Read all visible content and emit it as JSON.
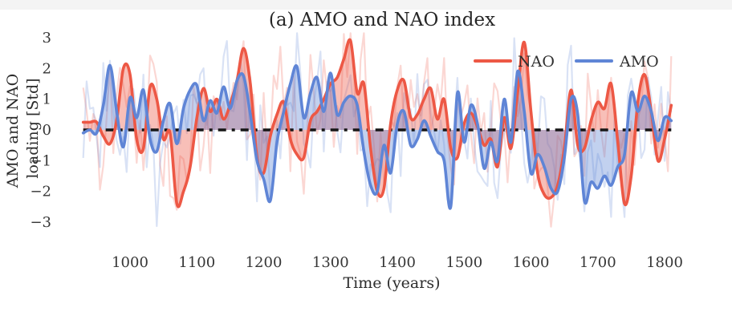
{
  "figure": {
    "title": "(a) AMO and NAO index",
    "xlabel": "Time (years)",
    "ylabel_line1": "AMO and NAO",
    "ylabel_line2": "loading [Std]",
    "legend": [
      {
        "label": "NAO",
        "color": "#ed5845"
      },
      {
        "label": "AMO",
        "color": "#5f85d6"
      }
    ]
  },
  "colors": {
    "nao_line": "#ed5845",
    "amo_line": "#5f85d6",
    "nao_fill_alpha": 0.38,
    "amo_fill_alpha": 0.38,
    "zero_line": "#161616",
    "background": "#ffffff"
  },
  "chart_data": {
    "type": "line",
    "title": "(a) AMO and NAO index",
    "xlabel": "Time (years)",
    "ylabel": "AMO and NAO loading [Std]",
    "xlim": [
      925,
      1818
    ],
    "ylim": [
      -3.2,
      3.2
    ],
    "xticks": [
      1000,
      1100,
      1200,
      1300,
      1400,
      1500,
      1600,
      1700,
      1800
    ],
    "ytick_values": [
      3,
      2,
      1,
      0,
      -1,
      -2,
      -3
    ],
    "ytick_labels": [
      "3",
      "2",
      "1",
      "0",
      "−1",
      "−2",
      "−3"
    ],
    "grid": false,
    "legend_position": "upper right",
    "zero_line": {
      "value": 0,
      "color": "#161616",
      "style": "dashed"
    },
    "x_years": [
      930,
      940,
      950,
      960,
      970,
      980,
      990,
      1000,
      1010,
      1020,
      1030,
      1040,
      1050,
      1060,
      1070,
      1080,
      1090,
      1100,
      1110,
      1120,
      1130,
      1140,
      1150,
      1160,
      1170,
      1180,
      1190,
      1200,
      1210,
      1220,
      1230,
      1240,
      1250,
      1260,
      1270,
      1280,
      1290,
      1300,
      1310,
      1320,
      1330,
      1340,
      1350,
      1360,
      1370,
      1380,
      1390,
      1400,
      1410,
      1420,
      1430,
      1440,
      1450,
      1460,
      1470,
      1480,
      1490,
      1500,
      1510,
      1520,
      1530,
      1540,
      1550,
      1560,
      1570,
      1580,
      1590,
      1600,
      1610,
      1620,
      1630,
      1640,
      1650,
      1660,
      1670,
      1680,
      1690,
      1700,
      1710,
      1720,
      1730,
      1740,
      1750,
      1760,
      1770,
      1780,
      1790,
      1800,
      1810
    ],
    "series": [
      {
        "name": "NAO",
        "color": "#ed5845",
        "fill_to_zero": true,
        "fill_alpha": 0.38,
        "values": [
          0.25,
          0.25,
          0.25,
          -0.2,
          -0.45,
          0.3,
          2.0,
          1.8,
          -0.3,
          -0.6,
          1.4,
          1.0,
          -0.3,
          -0.1,
          -2.4,
          -2.0,
          -1.2,
          0.4,
          1.35,
          0.6,
          1.0,
          0.35,
          0.85,
          1.6,
          2.65,
          1.5,
          -0.9,
          -1.4,
          -0.2,
          0.5,
          0.9,
          -0.3,
          -0.8,
          -0.9,
          0.3,
          0.6,
          1.0,
          1.5,
          1.7,
          2.3,
          2.9,
          1.2,
          1.5,
          -0.6,
          -2.0,
          -1.9,
          0.2,
          1.3,
          1.6,
          0.4,
          0.5,
          1.0,
          1.35,
          0.35,
          1.0,
          -0.6,
          -0.9,
          0.2,
          0.55,
          0.1,
          -0.5,
          -0.3,
          -1.2,
          0.4,
          -0.6,
          1.2,
          2.85,
          0.6,
          -1.4,
          -2.1,
          -2.2,
          -1.8,
          -0.6,
          1.3,
          -0.5,
          -0.6,
          0.3,
          0.9,
          0.7,
          1.5,
          -0.4,
          -2.4,
          -1.5,
          0.9,
          1.8,
          0.6,
          -1.0,
          -0.3,
          0.8
        ]
      },
      {
        "name": "AMO",
        "color": "#5f85d6",
        "fill_to_zero": true,
        "fill_alpha": 0.38,
        "values": [
          -0.1,
          0.0,
          -0.1,
          0.8,
          2.1,
          0.6,
          -0.55,
          1.05,
          0.4,
          1.3,
          -0.3,
          -0.7,
          0.3,
          0.85,
          -0.45,
          0.7,
          1.3,
          1.45,
          0.3,
          0.95,
          0.55,
          1.4,
          0.7,
          1.6,
          1.75,
          0.5,
          -1.0,
          -1.6,
          -2.3,
          -0.4,
          0.6,
          1.5,
          2.05,
          0.4,
          1.2,
          1.7,
          0.6,
          1.85,
          0.5,
          0.9,
          1.1,
          0.8,
          -0.7,
          -1.8,
          -2.0,
          -0.5,
          -1.4,
          0.2,
          0.6,
          -0.5,
          -0.3,
          0.3,
          -0.2,
          -0.7,
          -1.0,
          -2.5,
          1.2,
          -0.4,
          0.8,
          0.2,
          -1.25,
          -0.4,
          -1.0,
          1.0,
          -0.4,
          1.9,
          0.6,
          -1.4,
          -0.8,
          -1.2,
          -1.9,
          -2.0,
          -0.9,
          1.0,
          0.5,
          -2.3,
          -1.7,
          -1.9,
          -1.5,
          -1.8,
          -1.2,
          -0.8,
          1.2,
          0.6,
          1.1,
          0.6,
          -0.35,
          0.4,
          0.3
        ],
        "note": ""
      }
    ],
    "raw_annual_overlay": {
      "visible": true,
      "description": "pale high-frequency annual index values drawn behind the smoothed curves",
      "alpha": 0.24,
      "stroke_width": 2.2,
      "step_years": 5,
      "smooth_weight": 0.8,
      "noise_std": 1.0,
      "clip": 3.15,
      "seeds": {
        "NAO": 911,
        "AMO": 407
      }
    }
  }
}
